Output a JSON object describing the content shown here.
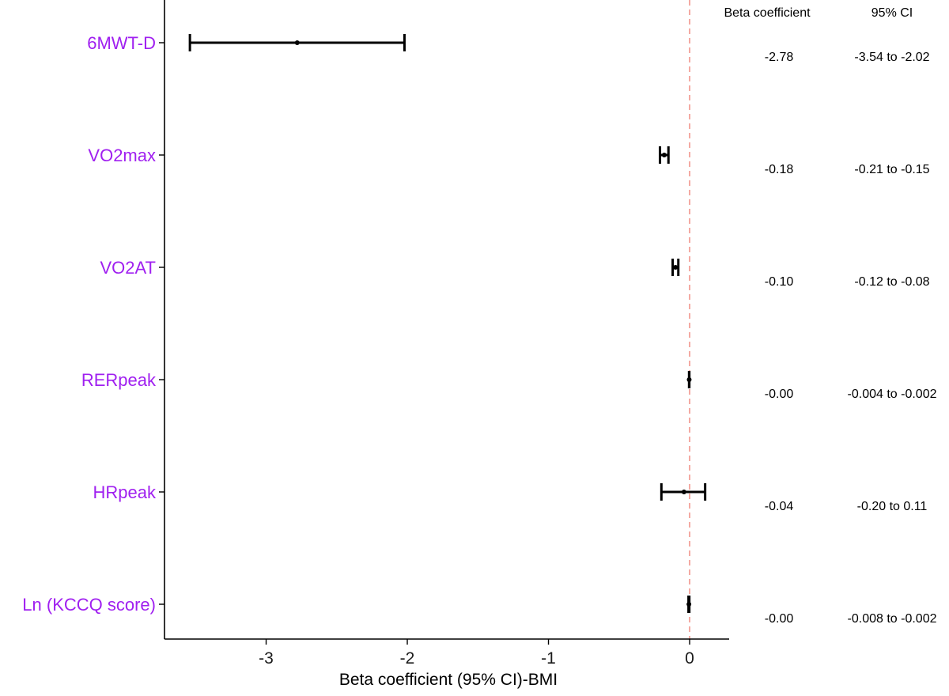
{
  "chart_data": {
    "type": "forest",
    "title": "",
    "xlabel": "Beta coefficient (95% CI)-BMI",
    "ylabel": "",
    "xlim": [
      -3.72,
      0.28
    ],
    "xticks": [
      -3,
      -2,
      -1,
      0
    ],
    "xtick_labels": [
      "-3",
      "-2",
      "-1",
      "0"
    ],
    "reference_value": 0,
    "reference_color": "#f4a098",
    "label_color": "#a020f0",
    "columns": {
      "beta_header": "Beta coefficient",
      "ci_header": "95% CI"
    },
    "rows": [
      {
        "label": "6MWT-D",
        "beta": -2.78,
        "lower": -3.54,
        "upper": -2.02,
        "beta_text": "-2.78",
        "ci_text": "-3.54 to -2.02"
      },
      {
        "label": "VO2max",
        "beta": -0.18,
        "lower": -0.21,
        "upper": -0.15,
        "beta_text": "-0.18",
        "ci_text": "-0.21 to -0.15"
      },
      {
        "label": "VO2AT",
        "beta": -0.1,
        "lower": -0.12,
        "upper": -0.08,
        "beta_text": "-0.10",
        "ci_text": "-0.12 to -0.08"
      },
      {
        "label": "RERpeak",
        "beta": -0.003,
        "lower": -0.004,
        "upper": -0.002,
        "beta_text": "-0.00",
        "ci_text": "-0.004 to -0.002"
      },
      {
        "label": "HRpeak",
        "beta": -0.04,
        "lower": -0.2,
        "upper": 0.11,
        "beta_text": "-0.04",
        "ci_text": "-0.20 to 0.11"
      },
      {
        "label": "Ln (KCCQ score)",
        "beta": -0.005,
        "lower": -0.008,
        "upper": -0.002,
        "beta_text": "-0.00",
        "ci_text": "-0.008 to -0.002"
      }
    ]
  }
}
